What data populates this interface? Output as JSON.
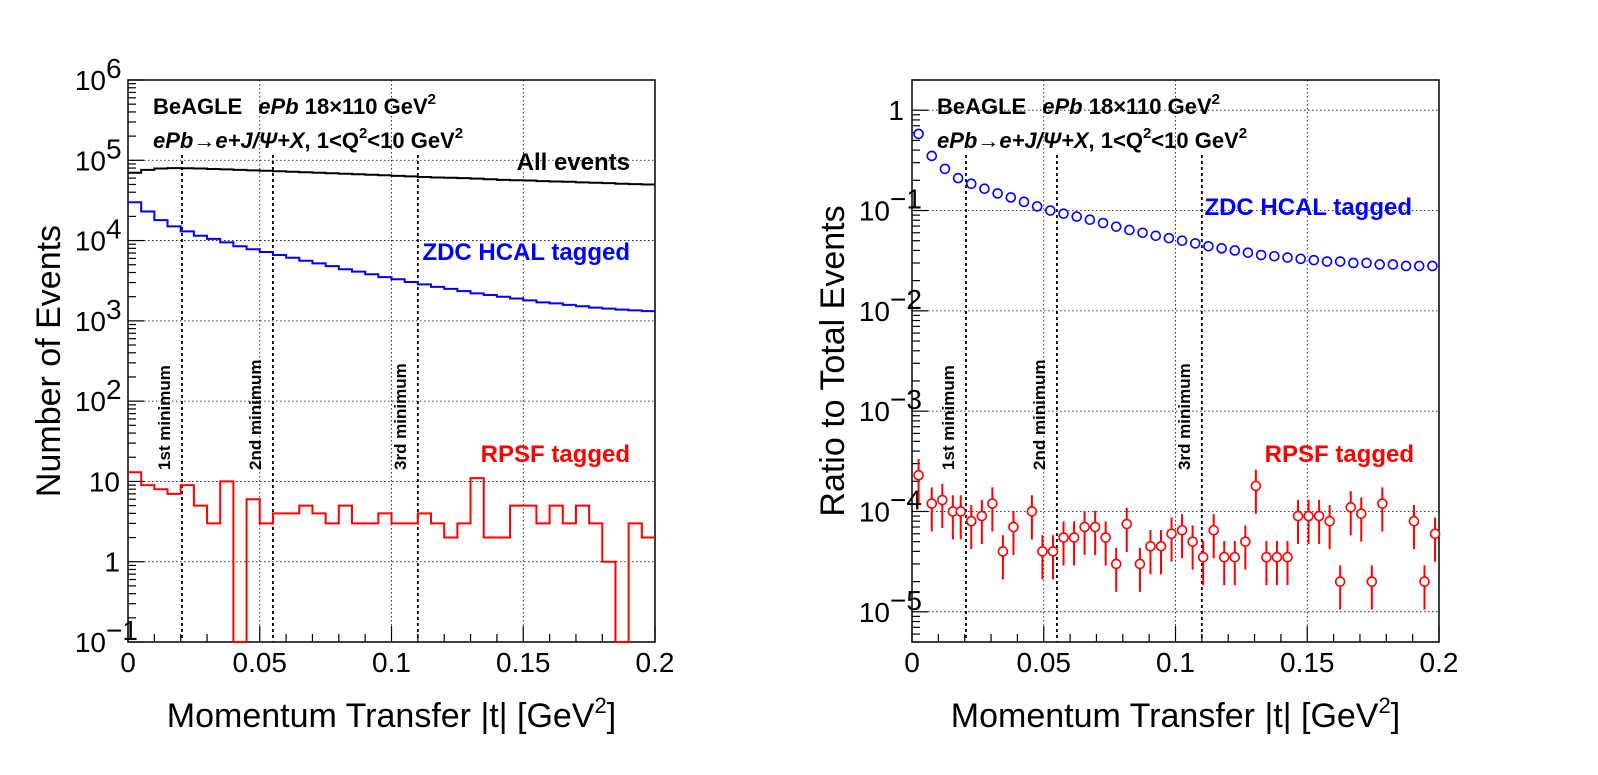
{
  "chart_data": [
    {
      "type": "histogram",
      "yscale": "log",
      "xlabel": "Momentum Transfer |t| [GeV",
      "xlabel_sup": "2",
      "xlabel_end": "]",
      "ylabel": "Number of Events",
      "xlim": [
        0,
        0.2
      ],
      "ylim": [
        0.1,
        1000000
      ],
      "x_ticks": [
        {
          "v": 0,
          "label": "0"
        },
        {
          "v": 0.05,
          "label": "0.05"
        },
        {
          "v": 0.1,
          "label": "0.1"
        },
        {
          "v": 0.15,
          "label": "0.15"
        },
        {
          "v": 0.2,
          "label": "0.2"
        }
      ],
      "y_ticks": [
        {
          "v": 0.1,
          "base": "10",
          "exp": "−1"
        },
        {
          "v": 1,
          "base": "1",
          "exp": ""
        },
        {
          "v": 10,
          "base": "10",
          "exp": ""
        },
        {
          "v": 100,
          "base": "10",
          "exp": "2"
        },
        {
          "v": 1000,
          "base": "10",
          "exp": "3"
        },
        {
          "v": 10000,
          "base": "10",
          "exp": "4"
        },
        {
          "v": 100000,
          "base": "10",
          "exp": "5"
        },
        {
          "v": 1000000,
          "base": "10",
          "exp": "6"
        }
      ],
      "annotation": {
        "line1_a": "BeAGLE",
        "line1_b": "ePb",
        "line1_c": "18×110 GeV",
        "line1_sup": "2",
        "line2_a": "ePb→e+J/Ψ+X",
        "line2_b": ", 1<Q",
        "line2_sup": "2",
        "line2_c": "<10 GeV",
        "line2_sup2": "2"
      },
      "minima": [
        {
          "x": 0.0205,
          "label": "1st minimum"
        },
        {
          "x": 0.055,
          "label": "2nd minimum"
        },
        {
          "x": 0.11,
          "label": "3rd minimum"
        }
      ],
      "bin_width": 0.005,
      "series": [
        {
          "name": "All events",
          "color": "#000000",
          "values": [
            70000,
            76000,
            79000,
            80000,
            79500,
            79000,
            78000,
            77000,
            76000,
            75000,
            74000,
            73000,
            72000,
            71000,
            70000,
            69000,
            68000,
            67000,
            66000,
            65000,
            64000,
            63000,
            62000,
            61000,
            60500,
            60000,
            59000,
            58000,
            57000,
            56500,
            56000,
            55000,
            54500,
            54000,
            53000,
            52500,
            52000,
            51000,
            50500,
            50000
          ]
        },
        {
          "name": "ZDC HCAL tagged",
          "color": "#0000ff",
          "values": [
            30000,
            23000,
            18000,
            15000,
            13000,
            11500,
            10500,
            9500,
            8500,
            7800,
            7200,
            6600,
            6100,
            5600,
            5200,
            4800,
            4400,
            4100,
            3800,
            3500,
            3300,
            3050,
            2850,
            2650,
            2500,
            2350,
            2200,
            2100,
            2000,
            1900,
            1800,
            1700,
            1650,
            1580,
            1520,
            1460,
            1420,
            1380,
            1350,
            1320
          ]
        },
        {
          "name": "RPSF tagged",
          "color": "#ff0000",
          "values": [
            13,
            9,
            8,
            7,
            9,
            5,
            3,
            10,
            0,
            6,
            3,
            4,
            4,
            5,
            4,
            3,
            5,
            3,
            3,
            4,
            3,
            3,
            4,
            3,
            2,
            3,
            11,
            2,
            2,
            5,
            5,
            3,
            5,
            3,
            5,
            3,
            1,
            0,
            3,
            2
          ]
        }
      ]
    },
    {
      "type": "scatter",
      "yscale": "log",
      "xlabel": "Momentum Transfer |t| [GeV",
      "xlabel_sup": "2",
      "xlabel_end": "]",
      "ylabel": "Ratio to Total Events",
      "xlim": [
        0,
        0.2
      ],
      "ylim": [
        5e-06,
        2
      ],
      "x_ticks": [
        {
          "v": 0,
          "label": "0"
        },
        {
          "v": 0.05,
          "label": "0.05"
        },
        {
          "v": 0.1,
          "label": "0.1"
        },
        {
          "v": 0.15,
          "label": "0.15"
        },
        {
          "v": 0.2,
          "label": "0.2"
        }
      ],
      "y_ticks": [
        {
          "v": 1e-05,
          "base": "10",
          "exp": "−5"
        },
        {
          "v": 0.0001,
          "base": "10",
          "exp": "−4"
        },
        {
          "v": 0.001,
          "base": "10",
          "exp": "−3"
        },
        {
          "v": 0.01,
          "base": "10",
          "exp": "−2"
        },
        {
          "v": 0.1,
          "base": "10",
          "exp": "−1"
        },
        {
          "v": 1,
          "base": "1",
          "exp": ""
        }
      ],
      "annotation": {
        "line1_a": "BeAGLE",
        "line1_b": "ePb",
        "line1_c": "18×110 GeV",
        "line1_sup": "2",
        "line2_a": "ePb→e+J/Ψ+X",
        "line2_b": ", 1<Q",
        "line2_sup": "2",
        "line2_c": "<10 GeV",
        "line2_sup2": "2"
      },
      "minima": [
        {
          "x": 0.0205,
          "label": "1st minimum"
        },
        {
          "x": 0.055,
          "label": "2nd minimum"
        },
        {
          "x": 0.11,
          "label": "3rd minimum"
        }
      ],
      "series": [
        {
          "name": "ZDC HCAL tagged",
          "color": "#0000ff",
          "x": [
            0.0025,
            0.0075,
            0.0125,
            0.0175,
            0.0225,
            0.0275,
            0.0325,
            0.0375,
            0.0425,
            0.0475,
            0.0525,
            0.0575,
            0.0625,
            0.0675,
            0.0725,
            0.0775,
            0.0825,
            0.0875,
            0.0925,
            0.0975,
            0.1025,
            0.1075,
            0.1125,
            0.1175,
            0.1225,
            0.1275,
            0.1325,
            0.1375,
            0.1425,
            0.1475,
            0.1525,
            0.1575,
            0.1625,
            0.1675,
            0.1725,
            0.1775,
            0.1825,
            0.1875,
            0.1925,
            0.1975
          ],
          "y": [
            0.58,
            0.35,
            0.26,
            0.21,
            0.185,
            0.165,
            0.148,
            0.135,
            0.122,
            0.11,
            0.1,
            0.093,
            0.087,
            0.081,
            0.075,
            0.069,
            0.064,
            0.06,
            0.056,
            0.053,
            0.05,
            0.047,
            0.044,
            0.042,
            0.04,
            0.038,
            0.036,
            0.035,
            0.034,
            0.033,
            0.032,
            0.031,
            0.031,
            0.03,
            0.03,
            0.029,
            0.029,
            0.028,
            0.028,
            0.028
          ]
        },
        {
          "name": "RPSF tagged",
          "color": "#ff0000",
          "points": [
            [
              0.0025,
              0.00023
            ],
            [
              0.0075,
              0.00012
            ],
            [
              0.0115,
              0.00013
            ],
            [
              0.0155,
              0.0001
            ],
            [
              0.0185,
              0.0001
            ],
            [
              0.0225,
              8e-05
            ],
            [
              0.0265,
              9e-05
            ],
            [
              0.0305,
              0.00012
            ],
            [
              0.0345,
              4e-05
            ],
            [
              0.0385,
              7e-05
            ],
            [
              0.0455,
              0.0001
            ],
            [
              0.0495,
              4e-05
            ],
            [
              0.0535,
              4e-05
            ],
            [
              0.0575,
              5.5e-05
            ],
            [
              0.0615,
              5.5e-05
            ],
            [
              0.0655,
              7e-05
            ],
            [
              0.0695,
              7e-05
            ],
            [
              0.0735,
              5.5e-05
            ],
            [
              0.0775,
              3e-05
            ],
            [
              0.0815,
              7.5e-05
            ],
            [
              0.0865,
              3e-05
            ],
            [
              0.0905,
              4.5e-05
            ],
            [
              0.0945,
              4.5e-05
            ],
            [
              0.0985,
              6e-05
            ],
            [
              0.1025,
              6.5e-05
            ],
            [
              0.1065,
              5e-05
            ],
            [
              0.1105,
              3.5e-05
            ],
            [
              0.1145,
              6.5e-05
            ],
            [
              0.1185,
              3.5e-05
            ],
            [
              0.1225,
              3.5e-05
            ],
            [
              0.1265,
              5e-05
            ],
            [
              0.1305,
              0.00018
            ],
            [
              0.1345,
              3.5e-05
            ],
            [
              0.1385,
              3.5e-05
            ],
            [
              0.1425,
              3.5e-05
            ],
            [
              0.1465,
              9e-05
            ],
            [
              0.1505,
              9e-05
            ],
            [
              0.1545,
              9e-05
            ],
            [
              0.1585,
              8e-05
            ],
            [
              0.1625,
              2e-05
            ],
            [
              0.1665,
              0.00011
            ],
            [
              0.1705,
              9.5e-05
            ],
            [
              0.1745,
              2e-05
            ],
            [
              0.1785,
              0.00012
            ],
            [
              0.1905,
              8e-05
            ],
            [
              0.1945,
              2e-05
            ],
            [
              0.1985,
              6e-05
            ]
          ]
        }
      ]
    }
  ]
}
